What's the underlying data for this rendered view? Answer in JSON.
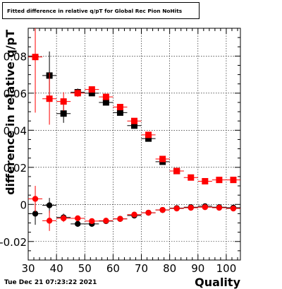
{
  "title": "Fitted difference in relative q/pT for Global Rec Pion NoHits",
  "timestamp": "Tue Dec 21 07:23:22 2021",
  "chart_data": {
    "type": "scatter",
    "title": "Fitted difference in relative q/pT for Global Rec Pion NoHits",
    "xlabel": "Quality",
    "ylabel": "difference in relative q/pT",
    "xlim": [
      30,
      105
    ],
    "ylim": [
      -0.03,
      0.095
    ],
    "x_ticks": [
      30,
      40,
      50,
      60,
      70,
      80,
      90,
      100
    ],
    "y_ticks": [
      -0.02,
      0,
      0.02,
      0.04,
      0.06,
      0.08
    ],
    "y_tick_labels": [
      "-0.02",
      "0",
      "0.02",
      "0.04",
      "0.06",
      "0.08"
    ],
    "grid": true,
    "series": [
      {
        "color": "#000000",
        "marker": "square",
        "x": [
          37.5,
          42.5,
          47.5,
          52.5,
          57.5,
          62.5,
          67.5,
          72.5,
          77.5,
          82.5
        ],
        "y": [
          0.0695,
          0.049,
          0.0605,
          0.06,
          0.055,
          0.0495,
          0.0425,
          0.0355,
          0.023,
          0.018
        ],
        "yerr": [
          0.013,
          0.005,
          0.002,
          0.0015,
          0.0012,
          0.001,
          0.001,
          0.001,
          0.0008,
          0.0008
        ]
      },
      {
        "color": "#ff0000",
        "marker": "square",
        "x": [
          32.5,
          37.5,
          42.5,
          47.5,
          52.5,
          57.5,
          62.5,
          67.5,
          72.5,
          77.5,
          82.5,
          87.5,
          92.5,
          97.5,
          102.5
        ],
        "y": [
          0.0795,
          0.057,
          0.0555,
          0.06,
          0.062,
          0.058,
          0.0525,
          0.045,
          0.0375,
          0.0245,
          0.018,
          0.0145,
          0.0125,
          0.0132,
          0.0132
        ],
        "yerr": [
          0.03,
          0.014,
          0.005,
          0.002,
          0.0015,
          0.0012,
          0.001,
          0.001,
          0.0009,
          0.0008,
          0.0007,
          0.0007,
          0.0007,
          0.0007,
          0.0007
        ]
      },
      {
        "color": "#000000",
        "marker": "circle",
        "x": [
          32.5,
          37.5,
          42.5,
          47.5,
          52.5,
          57.5,
          62.5,
          67.5,
          72.5,
          77.5,
          82.5,
          87.5,
          92.5,
          97.5,
          102.5
        ],
        "y": [
          -0.005,
          -0.0005,
          -0.007,
          -0.0105,
          -0.0105,
          -0.009,
          -0.0078,
          -0.006,
          -0.0045,
          -0.003,
          -0.002,
          -0.0015,
          -0.001,
          -0.0015,
          -0.0018
        ],
        "yerr": [
          0.006,
          0.004,
          0.002,
          0.0015,
          0.0012,
          0.001,
          0.001,
          0.0008,
          0.0007,
          0.0006,
          0.0006,
          0.0005,
          0.0005,
          0.0005,
          0.0005
        ]
      },
      {
        "color": "#ff0000",
        "marker": "circle",
        "x": [
          32.5,
          37.5,
          42.5,
          47.5,
          52.5,
          57.5,
          62.5,
          67.5,
          72.5,
          77.5,
          82.5,
          87.5,
          92.5,
          97.5,
          102.5
        ],
        "y": [
          0.003,
          -0.0088,
          -0.0075,
          -0.0075,
          -0.009,
          -0.0088,
          -0.0078,
          -0.0055,
          -0.0045,
          -0.003,
          -0.0022,
          -0.0018,
          -0.0015,
          -0.0018,
          -0.0022
        ],
        "yerr": [
          0.007,
          0.0055,
          0.002,
          0.0015,
          0.0012,
          0.001,
          0.001,
          0.0008,
          0.0007,
          0.0006,
          0.0006,
          0.0005,
          0.0005,
          0.0005,
          0.0005
        ]
      }
    ]
  }
}
